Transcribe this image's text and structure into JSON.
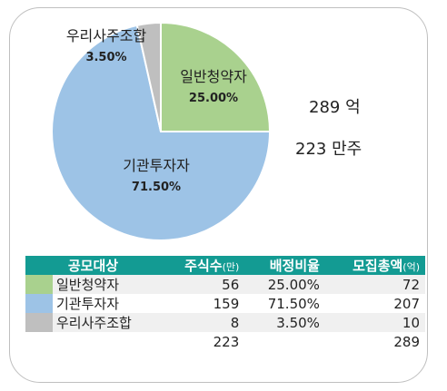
{
  "chart_data": {
    "type": "pie",
    "slices": [
      {
        "label": "일반청약자",
        "value": 25.0,
        "value_label": "25.00%",
        "color": "#a9d18e"
      },
      {
        "label": "기관투자자",
        "value": 71.5,
        "value_label": "71.50%",
        "color": "#9dc3e6"
      },
      {
        "label": "우리사주조합",
        "value": 3.5,
        "value_label": "3.50%",
        "color": "#bfbfbf"
      }
    ]
  },
  "side_totals": {
    "amount": "289 억",
    "shares": "223 만주"
  },
  "table": {
    "headers": {
      "category": "공모대상",
      "shares": "주식수",
      "shares_unit": "(만)",
      "ratio": "배정비율",
      "amount": "모집총액",
      "amount_unit": "(억)"
    },
    "rows": [
      {
        "color": "#a9d18e",
        "name": "일반청약자",
        "shares": "56",
        "ratio": "25.00%",
        "amount": "72"
      },
      {
        "color": "#9dc3e6",
        "name": "기관투자자",
        "shares": "159",
        "ratio": "71.50%",
        "amount": "207"
      },
      {
        "color": "#bfbfbf",
        "name": "우리사주조합",
        "shares": "8",
        "ratio": "3.50%",
        "amount": "10"
      }
    ],
    "totals": {
      "shares": "223",
      "amount": "289"
    }
  }
}
